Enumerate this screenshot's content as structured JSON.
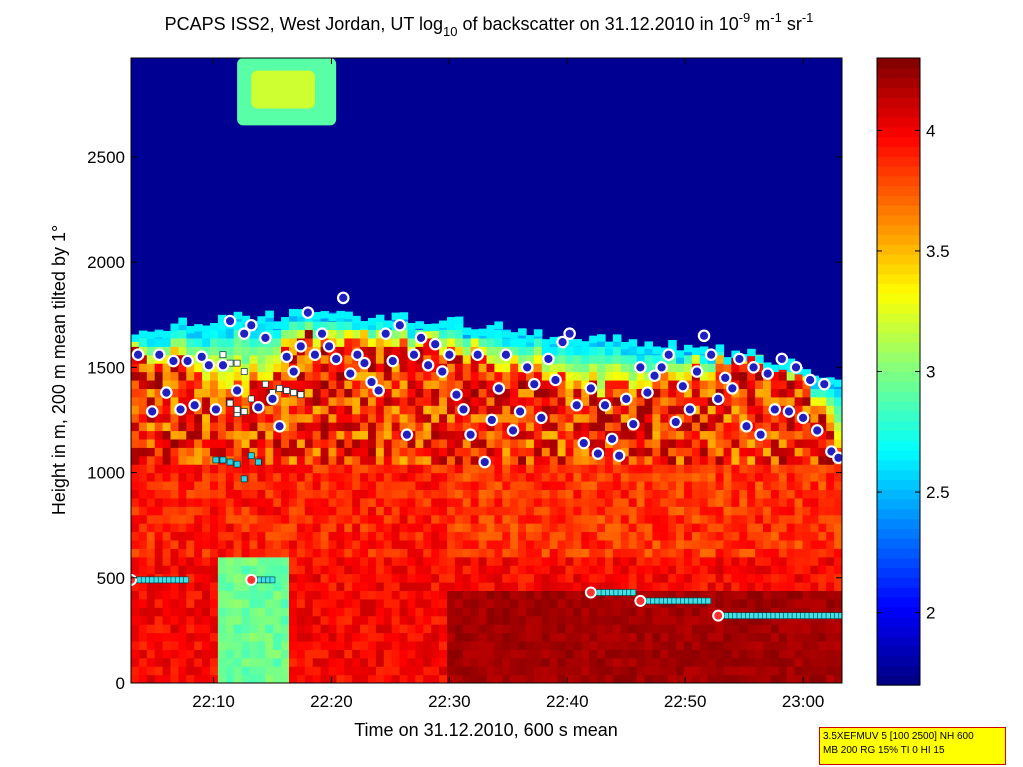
{
  "chart_data": {
    "type": "heatmap",
    "title": {
      "prefix": "PCAPS ISS2, West Jordan, UT log",
      "sub": "10",
      "middle": " of backscatter on 31.12.2010 in 10",
      "exp1": "-9",
      "unit1": " m",
      "exp2": "-1",
      "unit2": " sr",
      "exp3": "-1"
    },
    "xlabel": "Time on 31.12.2010, 600 s mean",
    "ylabel": "Height in m, 200 m mean tilted by 1°",
    "xlim": [
      22.05,
      23.055
    ],
    "ylim": [
      0,
      2970
    ],
    "x_ticks": [
      "22:10",
      "22:20",
      "22:30",
      "22:40",
      "22:50",
      "23:00"
    ],
    "y_ticks": [
      "0",
      "500",
      "1000",
      "1500",
      "2000",
      "2500"
    ],
    "y_tick_values": [
      0,
      500,
      1000,
      1500,
      2000,
      2500
    ],
    "colorbar": {
      "range": [
        1.7,
        4.3
      ],
      "ticks": [
        "2",
        "2.5",
        "3",
        "3.5",
        "4"
      ],
      "tick_values": [
        2,
        2.5,
        3,
        3.5,
        4
      ]
    },
    "background_top_log": 1.75,
    "aerosol_layer_top_m": [
      [
        22.05,
        1650
      ],
      [
        22.1,
        1660
      ],
      [
        22.15,
        1690
      ],
      [
        22.2,
        1700
      ],
      [
        22.25,
        1710
      ],
      [
        22.3,
        1720
      ],
      [
        22.35,
        1720
      ],
      [
        22.4,
        1710
      ],
      [
        22.45,
        1700
      ],
      [
        22.5,
        1690
      ],
      [
        22.55,
        1660
      ],
      [
        22.6,
        1640
      ],
      [
        22.65,
        1620
      ],
      [
        22.7,
        1600
      ],
      [
        22.75,
        1590
      ],
      [
        22.8,
        1580
      ],
      [
        22.85,
        1560
      ],
      [
        22.9,
        1540
      ],
      [
        22.95,
        1510
      ],
      [
        23.0,
        1470
      ],
      [
        23.055,
        1400
      ]
    ],
    "cloud_top_m": [
      [
        22.05,
        1560
      ],
      [
        22.1,
        1540
      ],
      [
        22.2,
        1400
      ],
      [
        22.25,
        1500
      ],
      [
        22.3,
        1640
      ],
      [
        22.35,
        1600
      ],
      [
        22.4,
        1600
      ],
      [
        22.45,
        1590
      ],
      [
        22.5,
        1580
      ],
      [
        22.55,
        1560
      ],
      [
        22.6,
        1500
      ],
      [
        22.65,
        1420
      ],
      [
        22.7,
        1400
      ],
      [
        22.75,
        1400
      ],
      [
        22.8,
        1450
      ],
      [
        22.85,
        1480
      ],
      [
        22.9,
        1500
      ],
      [
        22.95,
        1560
      ],
      [
        23.0,
        1450
      ],
      [
        23.055,
        1080
      ]
    ],
    "upper_plume": {
      "x": [
        22.2,
        22.34
      ],
      "y": [
        2650,
        2970
      ],
      "log": 2.9
    },
    "cloud_base_points_m": [
      [
        22.06,
        1560
      ],
      [
        22.08,
        1290
      ],
      [
        22.09,
        1560
      ],
      [
        22.1,
        1380
      ],
      [
        22.11,
        1530
      ],
      [
        22.12,
        1300
      ],
      [
        22.13,
        1530
      ],
      [
        22.14,
        1320
      ],
      [
        22.15,
        1550
      ],
      [
        22.16,
        1510
      ],
      [
        22.17,
        1300
      ],
      [
        22.18,
        1510
      ],
      [
        22.19,
        1720
      ],
      [
        22.2,
        1390
      ],
      [
        22.21,
        1660
      ],
      [
        22.22,
        1700
      ],
      [
        22.23,
        1310
      ],
      [
        22.24,
        1640
      ],
      [
        22.25,
        1350
      ],
      [
        22.26,
        1220
      ],
      [
        22.27,
        1550
      ],
      [
        22.28,
        1480
      ],
      [
        22.29,
        1600
      ],
      [
        22.3,
        1760
      ],
      [
        22.31,
        1560
      ],
      [
        22.32,
        1660
      ],
      [
        22.33,
        1600
      ],
      [
        22.34,
        1540
      ],
      [
        22.35,
        1830
      ],
      [
        22.36,
        1470
      ],
      [
        22.37,
        1560
      ],
      [
        22.38,
        1520
      ],
      [
        22.39,
        1430
      ],
      [
        22.4,
        1390
      ],
      [
        22.41,
        1660
      ],
      [
        22.42,
        1530
      ],
      [
        22.43,
        1700
      ],
      [
        22.44,
        1180
      ],
      [
        22.45,
        1560
      ],
      [
        22.46,
        1640
      ],
      [
        22.47,
        1510
      ],
      [
        22.48,
        1610
      ],
      [
        22.49,
        1480
      ],
      [
        22.5,
        1560
      ],
      [
        22.51,
        1370
      ],
      [
        22.52,
        1300
      ],
      [
        22.53,
        1180
      ],
      [
        22.54,
        1560
      ],
      [
        22.55,
        1050
      ],
      [
        22.56,
        1250
      ],
      [
        22.57,
        1400
      ],
      [
        22.58,
        1560
      ],
      [
        22.59,
        1200
      ],
      [
        22.6,
        1290
      ],
      [
        22.61,
        1500
      ],
      [
        22.62,
        1420
      ],
      [
        22.63,
        1260
      ],
      [
        22.64,
        1540
      ],
      [
        22.65,
        1440
      ],
      [
        22.66,
        1620
      ],
      [
        22.67,
        1660
      ],
      [
        22.68,
        1320
      ],
      [
        22.69,
        1140
      ],
      [
        22.7,
        1400
      ],
      [
        22.71,
        1090
      ],
      [
        22.72,
        1320
      ],
      [
        22.73,
        1160
      ],
      [
        22.74,
        1080
      ],
      [
        22.75,
        1350
      ],
      [
        22.76,
        1230
      ],
      [
        22.77,
        1500
      ],
      [
        22.78,
        1380
      ],
      [
        22.79,
        1460
      ],
      [
        22.8,
        1500
      ],
      [
        22.81,
        1560
      ],
      [
        22.82,
        1240
      ],
      [
        22.83,
        1410
      ],
      [
        22.84,
        1300
      ],
      [
        22.85,
        1480
      ],
      [
        22.86,
        1650
      ],
      [
        22.87,
        1560
      ],
      [
        22.88,
        1350
      ],
      [
        22.89,
        1450
      ],
      [
        22.9,
        1400
      ],
      [
        22.91,
        1540
      ],
      [
        22.92,
        1220
      ],
      [
        22.93,
        1500
      ],
      [
        22.94,
        1180
      ],
      [
        22.95,
        1470
      ],
      [
        22.96,
        1300
      ],
      [
        22.97,
        1540
      ],
      [
        22.98,
        1290
      ],
      [
        22.99,
        1500
      ],
      [
        23.0,
        1260
      ],
      [
        23.01,
        1440
      ],
      [
        23.02,
        1200
      ],
      [
        23.03,
        1420
      ],
      [
        23.04,
        1100
      ],
      [
        23.05,
        1070
      ]
    ],
    "mixing_layer_segments_m": [
      {
        "x": [
          22.05,
          22.13
        ],
        "y": 490
      },
      {
        "x": [
          22.22,
          22.25
        ],
        "y": 490
      },
      {
        "x": [
          22.7,
          22.76
        ],
        "y": 430
      },
      {
        "x": [
          22.77,
          22.87
        ],
        "y": 390
      },
      {
        "x": [
          22.88,
          23.055
        ],
        "y": 320
      }
    ],
    "square_markers_m": [
      [
        22.17,
        1060
      ],
      [
        22.18,
        1060
      ],
      [
        22.19,
        1050
      ],
      [
        22.2,
        1040
      ],
      [
        22.21,
        970
      ],
      [
        22.22,
        1080
      ],
      [
        22.23,
        1050
      ],
      [
        22.2,
        1280
      ],
      [
        22.22,
        1350
      ],
      [
        22.24,
        1420
      ],
      [
        22.25,
        1380
      ],
      [
        22.26,
        1400
      ],
      [
        22.27,
        1390
      ],
      [
        22.28,
        1380
      ],
      [
        22.29,
        1370
      ],
      [
        22.19,
        1330
      ],
      [
        22.2,
        1300
      ],
      [
        22.21,
        1290
      ],
      [
        22.18,
        1560
      ],
      [
        22.19,
        1520
      ],
      [
        22.2,
        1520
      ],
      [
        22.21,
        1480
      ]
    ],
    "parameter_box": {
      "line1": "3.5XEFMUV 5 [100 2500] NH 600",
      "line2": "MB 200 RG 15% TI 0 HI 15"
    }
  }
}
